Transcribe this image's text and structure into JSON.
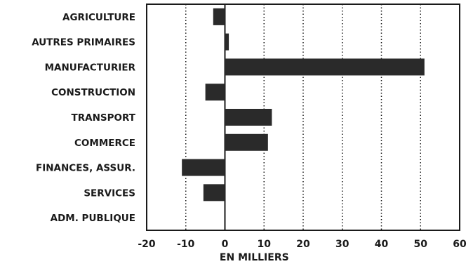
{
  "chart_data": {
    "type": "bar",
    "orientation": "horizontal",
    "categories": [
      "AGRICULTURE",
      "AUTRES PRIMAIRES",
      "MANUFACTURIER",
      "CONSTRUCTION",
      "TRANSPORT",
      "COMMERCE",
      "FINANCES, ASSUR.",
      "SERVICES",
      "ADM. PUBLIQUE"
    ],
    "values": [
      -3,
      1,
      51,
      -5,
      12,
      11,
      -11,
      -5.5,
      0
    ],
    "xlabel": "EN MILLIERS",
    "ylabel": "",
    "xlim": [
      -20,
      60
    ],
    "xticks": [
      "-20",
      "-10",
      "0",
      "10",
      "20",
      "30",
      "40",
      "50",
      "60"
    ],
    "grid": "vertical dotted",
    "bar_color": "#2a2a2a"
  }
}
